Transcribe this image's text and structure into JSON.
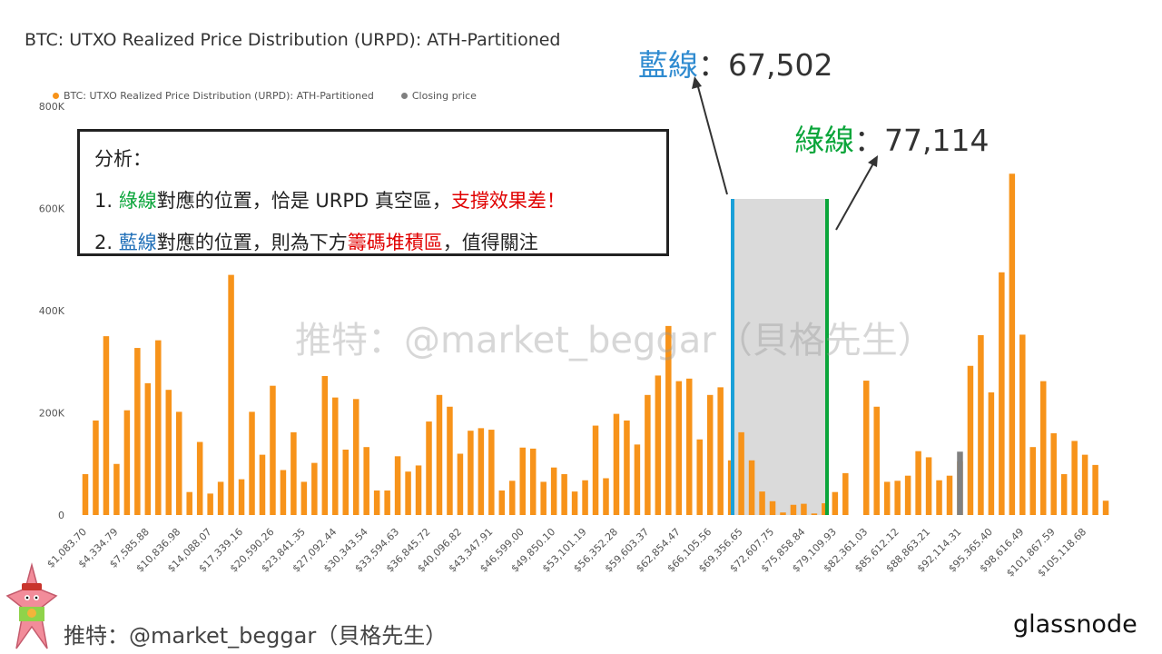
{
  "title": "BTC: UTXO Realized Price Distribution (URPD): ATH-Partitioned",
  "legend": [
    {
      "label": "BTC: UTXO Realized Price Distribution (URPD): ATH-Partitioned",
      "color": "#f7931a"
    },
    {
      "label": "Closing price",
      "color": "#808080"
    }
  ],
  "chart_data": {
    "type": "bar",
    "title": "BTC: UTXO Realized Price Distribution (URPD): ATH-Partitioned",
    "ylim": [
      0,
      800000
    ],
    "yticks": [
      {
        "value": 0,
        "label": "0"
      },
      {
        "value": 200000,
        "label": "200K"
      },
      {
        "value": 400000,
        "label": "400K"
      },
      {
        "value": 600000,
        "label": "600K"
      },
      {
        "value": 800000,
        "label": "800K"
      }
    ],
    "xtick_labels": [
      "$1,083.70",
      "$4,334.79",
      "$7,585.88",
      "$10,836.98",
      "$14,088.07",
      "$17,339.16",
      "$20,590.26",
      "$23,841.35",
      "$27,092.44",
      "$30,343.54",
      "$33,594.63",
      "$36,845.72",
      "$40,096.82",
      "$43,347.91",
      "$46,599.00",
      "$49,850.10",
      "$53,101.19",
      "$56,352.28",
      "$59,603.37",
      "$62,854.47",
      "$66,105.56",
      "$69,356.65",
      "$72,607.75",
      "$75,858.84",
      "$79,109.93",
      "$82,361.03",
      "$85,612.12",
      "$88,863.21",
      "$92,114.31",
      "$95,365.40",
      "$98,616.49",
      "$101,867.59",
      "$105,118.68"
    ],
    "closing_price_bar_index": 84,
    "series": [
      {
        "name": "BTC: UTXO Realized Price Distribution (URPD): ATH-Partitioned",
        "color": "#f7931a",
        "values": [
          80000,
          185000,
          350000,
          100000,
          205000,
          327000,
          258000,
          342000,
          245000,
          202000,
          45000,
          143000,
          42000,
          65000,
          470000,
          70000,
          202000,
          118000,
          253000,
          88000,
          162000,
          65000,
          102000,
          272000,
          230000,
          128000,
          227000,
          133000,
          48000,
          48000,
          115000,
          85000,
          97000,
          183000,
          235000,
          212000,
          120000,
          165000,
          170000,
          167000,
          48000,
          67000,
          132000,
          130000,
          65000,
          93000,
          80000,
          46000,
          68000,
          175000,
          72000,
          198000,
          185000,
          138000,
          235000,
          273000,
          370000,
          262000,
          267000,
          148000,
          235000,
          250000,
          107000,
          162000,
          107000,
          46000,
          27000,
          5000,
          20000,
          22000,
          3000,
          23000,
          45000,
          82000,
          0,
          263000,
          212000,
          65000,
          67000,
          77000,
          125000,
          113000,
          68000,
          77000,
          105000,
          292000,
          352000,
          240000,
          475000,
          668000,
          353000,
          133000,
          262000,
          160000,
          80000,
          145000,
          118000,
          98000,
          28000
        ]
      },
      {
        "name": "Closing price",
        "color": "#808080",
        "values": [
          124000
        ]
      }
    ],
    "shaded_range": {
      "from": 67502,
      "to": 77114
    }
  },
  "annotation_box": {
    "heading": "分析：",
    "line1": {
      "num": "1. ",
      "green": "綠線",
      "mid": "對應的位置，恰是 URPD 真空區，",
      "red": "支撐效果差！"
    },
    "line2": {
      "num": "2. ",
      "blue": "藍線",
      "mid": "對應的位置，則為下方",
      "red": "籌碼堆積區",
      "tail": "，值得關注"
    }
  },
  "callouts": {
    "blue": {
      "label": "藍線",
      "sep": "：",
      "value": "67,502",
      "color": "#2f8bd0"
    },
    "green": {
      "label": "綠線",
      "sep": "：",
      "value": "77,114",
      "color": "#0aa53a"
    }
  },
  "watermark": "推特：@market_beggar（貝格先生）",
  "footer_handle": "推特：@market_beggar（貝格先生）",
  "brand": "glassnode",
  "avatar_icon": "cartoon-starfish-avatar-icon"
}
